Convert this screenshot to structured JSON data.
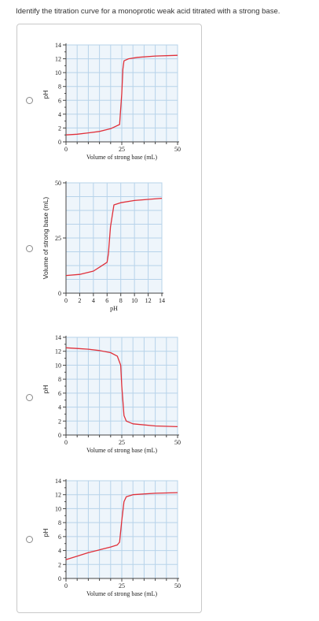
{
  "question": "Identify the titration curve for a monoprotic weak acid titrated with a strong base.",
  "colors": {
    "grid_fill": "#eef5fb",
    "grid_line": "#b7d3ea",
    "curve": "#e0303a",
    "axis": "#444444"
  },
  "options": [
    {
      "id": "a",
      "chart_data": {
        "type": "line",
        "xlabel": "Volume of strong base (mL)",
        "ylabel": "pH",
        "xlim": [
          0,
          50
        ],
        "ylim": [
          0,
          14
        ],
        "x_ticks": [
          "0",
          "25",
          "50"
        ],
        "y_ticks": [
          "0",
          "2",
          "4",
          "6",
          "8",
          "10",
          "12",
          "14"
        ],
        "series": [
          {
            "x": [
              0,
              5,
              10,
              15,
              20,
              24,
              25,
              25.5,
              26,
              28,
              32,
              40,
              50
            ],
            "y": [
              1.0,
              1.1,
              1.3,
              1.5,
              1.9,
              2.5,
              7,
              10.5,
              11.7,
              12.0,
              12.2,
              12.4,
              12.5
            ]
          }
        ]
      }
    },
    {
      "id": "b",
      "chart_data": {
        "type": "line",
        "xlabel": "pH",
        "ylabel": "Volume of strong base (mL)",
        "xlim": [
          0,
          14
        ],
        "ylim": [
          0,
          50
        ],
        "x_ticks": [
          "0",
          "2",
          "4",
          "6",
          "8",
          "10",
          "12",
          "14"
        ],
        "y_ticks": [
          "0",
          "25",
          "50"
        ],
        "series": [
          {
            "x": [
              0,
              2,
              4,
              5,
              6,
              6.2,
              6.5,
              7,
              8,
              10,
              12,
              14
            ],
            "y": [
              8,
              8.5,
              10,
              12,
              14,
              18,
              30,
              40,
              41,
              42,
              42.5,
              43
            ]
          }
        ]
      }
    },
    {
      "id": "c",
      "chart_data": {
        "type": "line",
        "xlabel": "Volume of strong base (mL)",
        "ylabel": "pH",
        "xlim": [
          0,
          50
        ],
        "ylim": [
          0,
          14
        ],
        "x_ticks": [
          "0",
          "25",
          "50"
        ],
        "y_ticks": [
          "0",
          "2",
          "4",
          "6",
          "8",
          "10",
          "12",
          "14"
        ],
        "series": [
          {
            "x": [
              0,
              5,
              10,
              15,
              20,
              23,
              24.5,
              25,
              26,
              27,
              30,
              40,
              50
            ],
            "y": [
              12.5,
              12.4,
              12.3,
              12.1,
              11.8,
              11.3,
              10,
              7,
              2.8,
              2.0,
              1.6,
              1.3,
              1.2
            ]
          }
        ]
      }
    },
    {
      "id": "d",
      "chart_data": {
        "type": "line",
        "xlabel": "Volume of strong base (mL)",
        "ylabel": "pH",
        "xlim": [
          0,
          50
        ],
        "ylim": [
          0,
          14
        ],
        "x_ticks": [
          "0",
          "25",
          "50"
        ],
        "y_ticks": [
          "0",
          "2",
          "4",
          "6",
          "8",
          "10",
          "12",
          "14"
        ],
        "series": [
          {
            "x": [
              0,
              5,
              10,
              15,
              20,
              23,
              24,
              25,
              26,
              27,
              30,
              40,
              50
            ],
            "y": [
              2.7,
              3.2,
              3.7,
              4.1,
              4.5,
              4.8,
              5.2,
              8.3,
              11.0,
              11.7,
              12.0,
              12.2,
              12.3
            ]
          }
        ]
      }
    }
  ]
}
